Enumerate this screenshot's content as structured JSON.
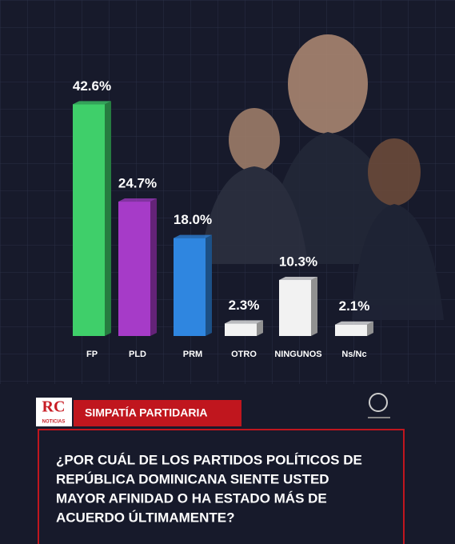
{
  "brand": {
    "logo": "RC",
    "sub": "NOTICIAS"
  },
  "chart_data": {
    "type": "bar",
    "categories": [
      "FP",
      "PLD",
      "PRM",
      "OTRO",
      "NINGUNOS",
      "Ns/Nc"
    ],
    "values": [
      42.6,
      24.7,
      18.0,
      2.3,
      10.3,
      2.1
    ],
    "value_labels": [
      "42.6%",
      "24.7%",
      "18.0%",
      "2.3%",
      "10.3%",
      "2.1%"
    ],
    "colors": [
      "#3fcf6a",
      "#a63bc8",
      "#2f86e0",
      "#f2f2f2",
      "#f2f2f2",
      "#f2f2f2"
    ]
  },
  "banner": {
    "label": "SIMPATÍA PARTIDARIA"
  },
  "question": {
    "lines": [
      "¿POR CUÁL DE LOS PARTIDOS POLÍTICOS DE",
      "REPÚBLICA DOMINICANA SIENTE USTED",
      "MAYOR AFINIDAD O HA ESTADO MÁS DE",
      "ACUERDO ÚLTIMAMENTE?"
    ]
  }
}
